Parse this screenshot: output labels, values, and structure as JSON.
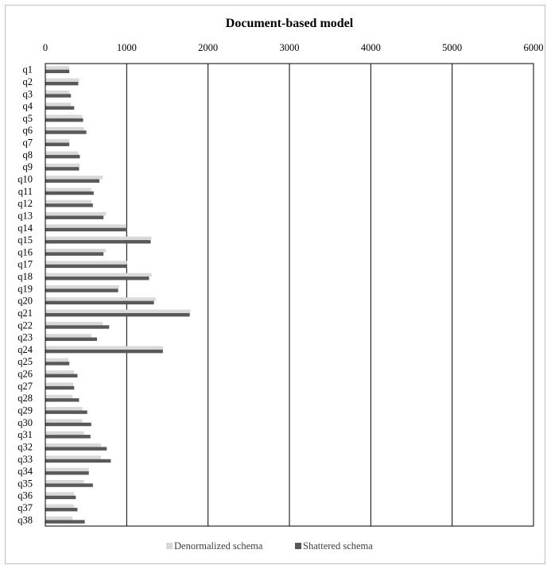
{
  "chart_data": {
    "type": "bar",
    "orientation": "horizontal",
    "title": "Document-based model",
    "xlabel": "",
    "ylabel": "",
    "xlim": [
      0,
      6000
    ],
    "x_ticks": [
      "0",
      "1000",
      "2000",
      "3000",
      "4000",
      "5000",
      "6000"
    ],
    "x_tick_values": [
      0,
      1000,
      2000,
      3000,
      4000,
      5000,
      6000
    ],
    "x_axis_position": "top",
    "grid": true,
    "legend_position": "bottom",
    "colors": {
      "Denormalized schema": "#d9d9d9",
      "Shattered schema": "#595959"
    },
    "categories": [
      "q1",
      "q2",
      "q3",
      "q4",
      "q5",
      "q6",
      "q7",
      "q8",
      "q9",
      "q10",
      "q11",
      "q12",
      "q13",
      "q14",
      "q15",
      "q16",
      "q17",
      "q18",
      "q19",
      "q20",
      "q21",
      "q22",
      "q23",
      "q24",
      "q25",
      "q26",
      "q27",
      "q28",
      "q29",
      "q30",
      "q31",
      "q32",
      "q33",
      "q34",
      "q35",
      "q36",
      "q37",
      "q38"
    ],
    "series": [
      {
        "name": "Denormalized schema",
        "values": [
          290,
          410,
          290,
          310,
          450,
          470,
          290,
          400,
          420,
          700,
          560,
          560,
          740,
          990,
          1300,
          740,
          1000,
          1300,
          900,
          1350,
          1780,
          700,
          560,
          1440,
          280,
          350,
          340,
          330,
          450,
          450,
          470,
          680,
          680,
          530,
          470,
          350,
          350,
          330
        ]
      },
      {
        "name": "Shattered schema",
        "values": [
          290,
          400,
          310,
          350,
          460,
          500,
          290,
          420,
          410,
          660,
          590,
          580,
          710,
          1000,
          1290,
          710,
          1000,
          1270,
          890,
          1330,
          1770,
          780,
          630,
          1440,
          290,
          390,
          350,
          410,
          510,
          560,
          550,
          750,
          800,
          530,
          580,
          370,
          390,
          480
        ]
      }
    ]
  }
}
